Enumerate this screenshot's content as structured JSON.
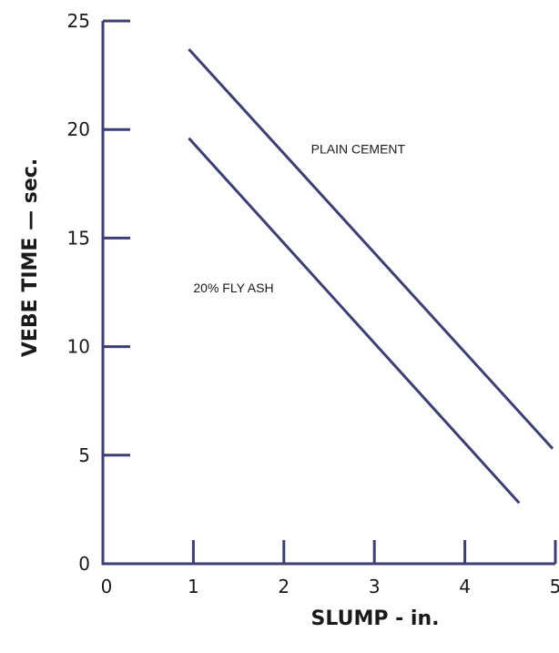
{
  "chart_data": {
    "type": "line",
    "xlabel": "SLUMP - in.",
    "ylabel": "VEBE TIME — sec.",
    "xlim": [
      0,
      5
    ],
    "ylim": [
      0,
      25
    ],
    "xticks": [
      {
        "value": 0,
        "label": "0"
      },
      {
        "value": 1,
        "label": "1"
      },
      {
        "value": 2,
        "label": "2"
      },
      {
        "value": 3,
        "label": "3"
      },
      {
        "value": 4,
        "label": "4"
      },
      {
        "value": 5,
        "label": "5"
      }
    ],
    "yticks": [
      {
        "value": 0,
        "label": "0"
      },
      {
        "value": 5,
        "label": "5"
      },
      {
        "value": 10,
        "label": "10"
      },
      {
        "value": 15,
        "label": "15"
      },
      {
        "value": 20,
        "label": "20"
      },
      {
        "value": 25,
        "label": "25"
      }
    ],
    "grid": false,
    "line_color": "#3b3f73",
    "series": [
      {
        "name": "PLAIN CEMENT",
        "x": [
          0.95,
          4.97
        ],
        "y": [
          23.7,
          5.3
        ],
        "label_at": {
          "x": 2.3,
          "y": 18.9
        }
      },
      {
        "name": "20% FLY ASH",
        "x": [
          0.95,
          4.6
        ],
        "y": [
          19.6,
          2.8
        ],
        "label_at": {
          "x": 1.0,
          "y": 12.5
        }
      }
    ]
  }
}
